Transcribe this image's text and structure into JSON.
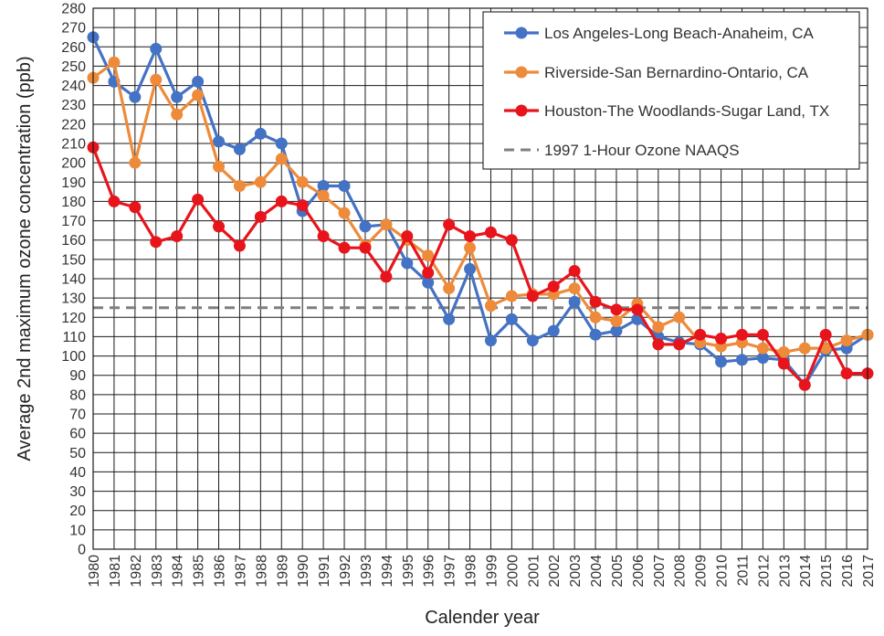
{
  "chart_data": {
    "type": "line",
    "xlabel": "Calender year",
    "ylabel": "Average 2nd maximum ozone concentration (ppb)",
    "xlim": [
      1980,
      2017
    ],
    "ylim": [
      0,
      280
    ],
    "y_ticks": [
      0,
      10,
      20,
      30,
      40,
      50,
      60,
      70,
      80,
      90,
      100,
      110,
      120,
      130,
      140,
      150,
      160,
      170,
      180,
      190,
      200,
      210,
      220,
      230,
      240,
      250,
      260,
      270,
      280
    ],
    "x": [
      1980,
      1981,
      1982,
      1983,
      1984,
      1985,
      1986,
      1987,
      1988,
      1989,
      1990,
      1991,
      1992,
      1993,
      1994,
      1995,
      1996,
      1997,
      1998,
      1999,
      2000,
      2001,
      2002,
      2003,
      2004,
      2005,
      2006,
      2007,
      2008,
      2009,
      2010,
      2011,
      2012,
      2013,
      2014,
      2015,
      2016,
      2017
    ],
    "grid": true,
    "legend_position": "top-right",
    "series": [
      {
        "name": "Los Angeles-Long Beach-Anaheim, CA",
        "color": "#4472C4",
        "values": [
          265,
          242,
          234,
          259,
          234,
          242,
          211,
          207,
          215,
          210,
          175,
          188,
          188,
          167,
          168,
          148,
          138,
          119,
          145,
          108,
          119,
          108,
          113,
          128,
          111,
          113,
          119,
          110,
          107,
          106,
          97,
          98,
          99,
          98,
          85,
          103,
          104,
          111
        ]
      },
      {
        "name": "Riverside-San Bernardino-Ontario, CA",
        "color": "#ED8B3B",
        "values": [
          244,
          252,
          200,
          243,
          225,
          235,
          198,
          188,
          190,
          202,
          190,
          183,
          174,
          157,
          168,
          160,
          152,
          135,
          156,
          126,
          131,
          132,
          132,
          135,
          120,
          118,
          127,
          115,
          120,
          107,
          105,
          107,
          104,
          102,
          104,
          104,
          108,
          111
        ]
      },
      {
        "name": "Houston-The Woodlands-Sugar Land, TX",
        "color": "#E8141B",
        "values": [
          208,
          180,
          177,
          159,
          162,
          181,
          167,
          157,
          172,
          180,
          178,
          162,
          156,
          156,
          141,
          162,
          143,
          168,
          162,
          164,
          160,
          131,
          136,
          144,
          128,
          124,
          124,
          106,
          106,
          111,
          109,
          111,
          111,
          96,
          85,
          111,
          91,
          91
        ]
      }
    ],
    "reference_line": {
      "name": "1997 1-Hour Ozone NAAQS",
      "value": 125,
      "color": "#7F7F7F"
    }
  }
}
